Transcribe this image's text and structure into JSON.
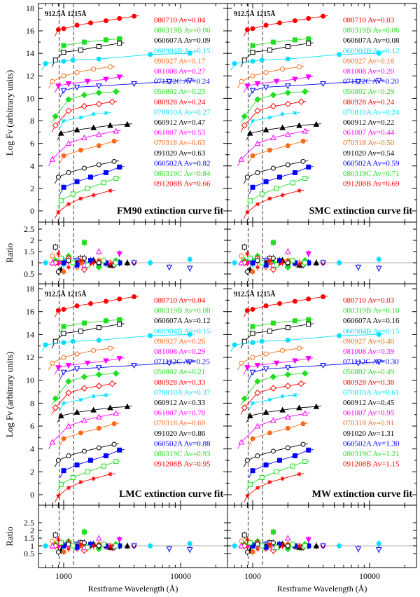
{
  "chart_data": {
    "type": "scatter",
    "xlabel": "Restframe Wavelength (Å)",
    "ylabel": "Log Fν (arbitrary units)",
    "ratio_label": "Ratio",
    "x_scale": "log",
    "xlim": [
      600,
      25000
    ],
    "x_ticks": [
      1000,
      10000
    ],
    "ylim": [
      -1,
      18.5
    ],
    "y_ticks": [
      0,
      2,
      4,
      6,
      8,
      10,
      12,
      14,
      16,
      18
    ],
    "ratio_ylim": [
      0.2,
      2.9
    ],
    "ratio_ticks": [
      0.5,
      1,
      1.5,
      2,
      2.5
    ],
    "vlines": [
      912.5,
      1215
    ],
    "vline_label": "912.5Å 1215Å",
    "panels": [
      {
        "title": "FM90 extinction curve fit",
        "av": [
          0.04,
          0.06,
          0.09,
          0.15,
          0.17,
          0.27,
          0.24,
          0.23,
          0.24,
          0.27,
          0.47,
          0.53,
          0.63,
          0.63,
          0.82,
          0.84,
          0.66
        ]
      },
      {
        "title": "SMC extinction curve fit",
        "av": [
          0.03,
          0.06,
          0.08,
          0.12,
          0.16,
          0.2,
          0.2,
          0.29,
          0.24,
          0.24,
          0.22,
          0.44,
          0.5,
          0.54,
          0.59,
          0.71,
          0.69
        ]
      },
      {
        "title": "LMC extinction curve fit",
        "av": [
          0.04,
          0.08,
          0.12,
          0.15,
          0.26,
          0.29,
          0.25,
          0.21,
          0.33,
          0.37,
          0.33,
          0.7,
          0.69,
          0.86,
          0.88,
          0.93,
          0.95
        ]
      },
      {
        "title": "MW extinction curve fit",
        "av": [
          0.03,
          0.1,
          0.16,
          0.15,
          0.4,
          0.39,
          0.3,
          0.49,
          0.38,
          0.61,
          0.45,
          0.95,
          0.91,
          1.31,
          1.3,
          1.21,
          1.15
        ]
      }
    ],
    "series": [
      {
        "name": "080710",
        "color": "#ff0000",
        "marker": "circle-filled",
        "points": [
          [
            900,
            16.1
          ],
          [
            1000,
            16.2
          ],
          [
            1300,
            16.5
          ],
          [
            1700,
            16.7
          ],
          [
            2300,
            16.9
          ],
          [
            3000,
            17.1
          ],
          [
            4000,
            17.3
          ]
        ],
        "ratio": [
          1.0,
          1.0,
          1.05,
          1.0,
          0.95,
          1.0,
          1.0
        ]
      },
      {
        "name": "080319B",
        "color": "#22dd22",
        "marker": "square-filled",
        "points": [
          [
            1000,
            14.7
          ],
          [
            1500,
            15.0
          ],
          [
            2300,
            15.2
          ],
          [
            3000,
            15.3
          ]
        ],
        "ratio": [
          1.1,
          1.9,
          1.0,
          1.0
        ]
      },
      {
        "name": "060607A",
        "color": "#000000",
        "marker": "square-open",
        "points": [
          [
            850,
            13.4
          ],
          [
            1000,
            14.1
          ],
          [
            1400,
            14.3
          ],
          [
            2000,
            14.6
          ],
          [
            3000,
            14.9
          ]
        ],
        "ratio": [
          1.7,
          1.0,
          1.2,
          0.9,
          1.0
        ]
      },
      {
        "name": "060904B",
        "color": "#00e0ff",
        "marker": "circle-filled",
        "points": [
          [
            700,
            13.1
          ],
          [
            1000,
            13.3
          ],
          [
            1200,
            13.4
          ],
          [
            2000,
            13.5
          ],
          [
            5500,
            13.9
          ],
          [
            12000,
            14.0
          ]
        ],
        "ratio": [
          1.0,
          1.1,
          1.0,
          0.9,
          1.0,
          1.15
        ]
      },
      {
        "name": "090927",
        "color": "#ff6a1a",
        "marker": "circle-open",
        "points": [
          [
            800,
            11.5
          ],
          [
            1000,
            12.0
          ],
          [
            1300,
            12.3
          ],
          [
            1800,
            12.6
          ],
          [
            2500,
            12.8
          ]
        ],
        "ratio": [
          1.3,
          1.0,
          0.8,
          1.1,
          1.0
        ]
      },
      {
        "name": "081008",
        "color": "#ff00ff",
        "marker": "tri-down-filled",
        "points": [
          [
            900,
            11.1
          ],
          [
            1100,
            11.3
          ],
          [
            1600,
            11.5
          ],
          [
            2300,
            11.7
          ],
          [
            3000,
            11.9
          ]
        ],
        "ratio": [
          1.0,
          1.2,
          0.9,
          1.0,
          1.4
        ]
      },
      {
        "name": "071112C",
        "color": "#0000ff",
        "marker": "tri-down-open",
        "points": [
          [
            1000,
            10.7
          ],
          [
            1300,
            11.0
          ],
          [
            2000,
            11.1
          ],
          [
            4000,
            11.3
          ],
          [
            8000,
            11.5
          ],
          [
            12000,
            11.6
          ]
        ],
        "ratio": [
          1.0,
          1.1,
          0.9,
          1.0,
          0.8,
          0.75
        ]
      },
      {
        "name": "050802",
        "color": "#22dd22",
        "marker": "diamond-filled",
        "points": [
          [
            850,
            8.4
          ],
          [
            1100,
            9.9
          ],
          [
            1500,
            10.3
          ],
          [
            2000,
            10.5
          ],
          [
            2800,
            10.6
          ]
        ],
        "ratio": [
          1.1,
          1.3,
          1.0,
          0.8,
          1.1
        ]
      },
      {
        "name": "080928",
        "color": "#ff0000",
        "marker": "diamond-open",
        "points": [
          [
            850,
            7.6
          ],
          [
            1100,
            8.9
          ],
          [
            1500,
            9.3
          ],
          [
            2000,
            9.5
          ],
          [
            2600,
            9.7
          ]
        ],
        "ratio": [
          1.0,
          1.2,
          0.7,
          1.0,
          0.9
        ]
      },
      {
        "name": "070810A",
        "color": "#00e0ff",
        "marker": "asterisk",
        "points": [
          [
            1000,
            8.0
          ],
          [
            1400,
            8.3
          ],
          [
            1800,
            8.6
          ],
          [
            2300,
            8.7
          ]
        ],
        "ratio": [
          0.9,
          1.0,
          1.1,
          0.95
        ]
      },
      {
        "name": "060912",
        "color": "#000000",
        "marker": "tri-up-filled",
        "points": [
          [
            950,
            6.9
          ],
          [
            1300,
            7.2
          ],
          [
            1800,
            7.4
          ],
          [
            2500,
            7.6
          ],
          [
            3500,
            7.7
          ]
        ],
        "ratio": [
          0.7,
          1.0,
          1.1,
          0.9,
          1.0
        ]
      },
      {
        "name": "061007",
        "color": "#ff00ff",
        "marker": "tri-up-open",
        "points": [
          [
            800,
            4.6
          ],
          [
            1100,
            6.0
          ],
          [
            1500,
            6.5
          ],
          [
            2000,
            6.8
          ],
          [
            2800,
            7.1
          ]
        ],
        "ratio": [
          1.0,
          1.1,
          0.9,
          1.5,
          1.0
        ]
      },
      {
        "name": "070318",
        "color": "#ff6a1a",
        "marker": "circle-filled",
        "points": [
          [
            1000,
            4.9
          ],
          [
            1400,
            5.4
          ],
          [
            2000,
            5.8
          ],
          [
            2700,
            6.2
          ]
        ],
        "ratio": [
          0.6,
          1.0,
          1.1,
          0.95
        ]
      },
      {
        "name": "091020",
        "color": "#000000",
        "marker": "circle-open",
        "points": [
          [
            900,
            3.0
          ],
          [
            1100,
            3.4
          ],
          [
            1500,
            3.8
          ],
          [
            2000,
            4.1
          ],
          [
            2700,
            4.4
          ]
        ],
        "ratio": [
          0.6,
          1.1,
          1.2,
          1.0,
          0.9
        ]
      },
      {
        "name": "060502A",
        "color": "#0000ff",
        "marker": "square-filled",
        "points": [
          [
            1000,
            2.1
          ],
          [
            1300,
            2.6
          ],
          [
            1700,
            3.0
          ],
          [
            2300,
            3.4
          ],
          [
            3000,
            3.9
          ]
        ],
        "ratio": [
          1.0,
          0.9,
          1.1,
          1.0,
          1.0
        ]
      },
      {
        "name": "080319C",
        "color": "#22dd22",
        "marker": "square-open",
        "points": [
          [
            950,
            0.9
          ],
          [
            1200,
            1.5
          ],
          [
            1600,
            2.0
          ],
          [
            2200,
            2.5
          ],
          [
            2800,
            2.9
          ]
        ],
        "ratio": [
          1.2,
          1.0,
          0.9,
          1.1,
          1.0
        ]
      },
      {
        "name": "091208B",
        "color": "#ff0000",
        "marker": "asterisk",
        "points": [
          [
            900,
            -0.1
          ],
          [
            1100,
            0.6
          ],
          [
            1400,
            1.1
          ],
          [
            1800,
            1.4
          ],
          [
            2500,
            1.8
          ]
        ],
        "ratio": [
          1.4,
          0.8,
          1.1,
          1.0,
          0.95
        ]
      }
    ]
  }
}
